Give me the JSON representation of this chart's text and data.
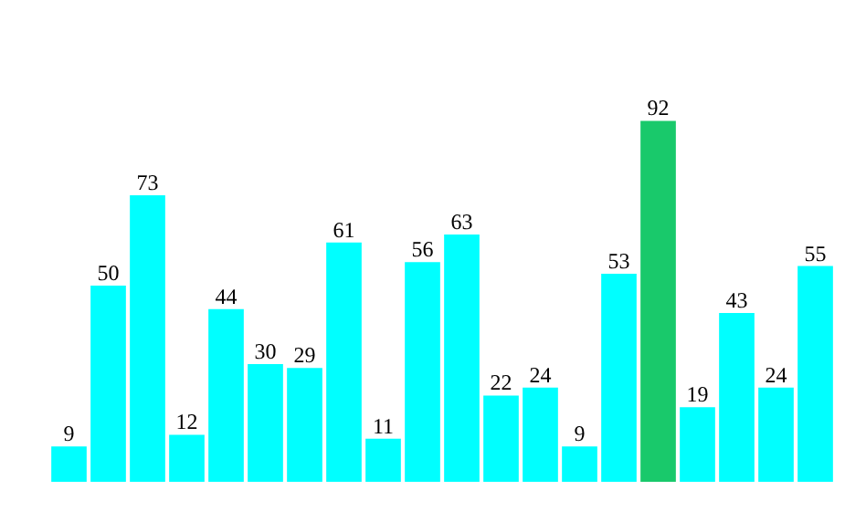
{
  "chart_data": {
    "type": "bar",
    "categories": [
      null,
      null,
      null,
      null,
      null,
      null,
      null,
      null,
      null,
      null,
      null,
      null,
      null,
      null,
      null,
      null,
      null,
      null,
      null,
      null
    ],
    "values": [
      9,
      50,
      73,
      12,
      44,
      30,
      29,
      61,
      11,
      56,
      63,
      22,
      24,
      9,
      53,
      92,
      19,
      43,
      24,
      55
    ],
    "colors": [
      "#00ffff",
      "#00ffff",
      "#00ffff",
      "#00ffff",
      "#00ffff",
      "#00ffff",
      "#00ffff",
      "#00ffff",
      "#00ffff",
      "#00ffff",
      "#00ffff",
      "#00ffff",
      "#00ffff",
      "#00ffff",
      "#00ffff",
      "#19c96b",
      "#00ffff",
      "#00ffff",
      "#00ffff",
      "#00ffff"
    ],
    "data_labels": true,
    "tick_labels": false
  }
}
